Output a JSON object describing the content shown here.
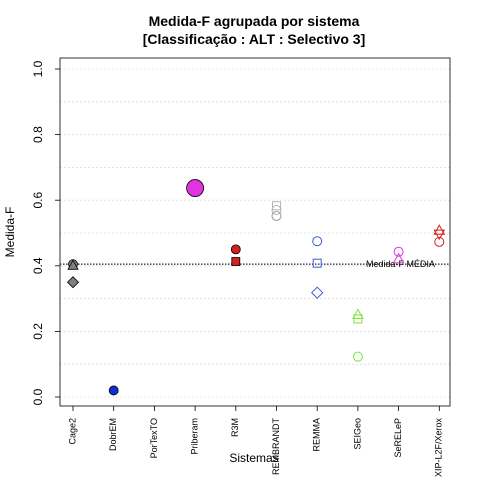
{
  "chart_data": {
    "type": "scatter",
    "title": "Medida-F agrupada por sistema",
    "subtitle": "[Classificação : ALT : Selectivo 3]",
    "xlabel": "Sistemas",
    "ylabel": "Medida-F",
    "ylim": [
      0,
      1
    ],
    "yticks": [
      "0.0",
      "0.2",
      "0.4",
      "0.6",
      "0.8",
      "1.0"
    ],
    "categories": [
      "Cage2",
      "DobrEM",
      "PorTexTO",
      "Priberam",
      "R3M",
      "REMBRANDT",
      "REMMA",
      "SEIGeo",
      "SeRELeP",
      "XIP-L2F/Xerox"
    ],
    "grid": true,
    "reference_line": {
      "label": "Medida-F MÉDIA",
      "value": 0.405
    },
    "points": [
      {
        "category": "Cage2",
        "value": 0.405,
        "marker": "circle",
        "filled": true,
        "color": "#808080"
      },
      {
        "category": "Cage2",
        "value": 0.4,
        "marker": "triangle",
        "filled": true,
        "color": "#808080"
      },
      {
        "category": "Cage2",
        "value": 0.35,
        "marker": "diamond",
        "filled": true,
        "color": "#808080"
      },
      {
        "category": "DobrEM",
        "value": 0.02,
        "marker": "circle",
        "filled": true,
        "color": "#0b2fd6"
      },
      {
        "category": "Priberam",
        "value": 0.637,
        "marker": "circle-large",
        "filled": true,
        "color": "#e233e2"
      },
      {
        "category": "R3M",
        "value": 0.45,
        "marker": "circle",
        "filled": true,
        "color": "#d42020"
      },
      {
        "category": "R3M",
        "value": 0.413,
        "marker": "square",
        "filled": true,
        "color": "#d42020"
      },
      {
        "category": "REMBRANDT",
        "value": 0.583,
        "marker": "square",
        "filled": false,
        "color": "#b4b4b4"
      },
      {
        "category": "REMBRANDT",
        "value": 0.57,
        "marker": "circle",
        "filled": false,
        "color": "#b4b4b4"
      },
      {
        "category": "REMBRANDT",
        "value": 0.552,
        "marker": "circle",
        "filled": false,
        "color": "#9a9a9a"
      },
      {
        "category": "REMMA",
        "value": 0.475,
        "marker": "circle",
        "filled": false,
        "color": "#3b5bdb"
      },
      {
        "category": "REMMA",
        "value": 0.408,
        "marker": "square",
        "filled": false,
        "color": "#3b5bdb"
      },
      {
        "category": "REMMA",
        "value": 0.318,
        "marker": "diamond",
        "filled": false,
        "color": "#3b5bdb"
      },
      {
        "category": "SEIGeo",
        "value": 0.25,
        "marker": "triangle",
        "filled": false,
        "color": "#7be33b"
      },
      {
        "category": "SEIGeo",
        "value": 0.238,
        "marker": "square",
        "filled": false,
        "color": "#7be33b"
      },
      {
        "category": "SEIGeo",
        "value": 0.123,
        "marker": "circle",
        "filled": false,
        "color": "#7be33b"
      },
      {
        "category": "SeRELeP",
        "value": 0.443,
        "marker": "circle",
        "filled": false,
        "color": "#e233e2"
      },
      {
        "category": "SeRELeP",
        "value": 0.42,
        "marker": "triangle",
        "filled": false,
        "color": "#e233e2"
      },
      {
        "category": "XIP-L2F/Xerox",
        "value": 0.507,
        "marker": "triangle",
        "filled": false,
        "color": "#d42020"
      },
      {
        "category": "XIP-L2F/Xerox",
        "value": 0.498,
        "marker": "triangle-down",
        "filled": false,
        "color": "#d42020"
      },
      {
        "category": "XIP-L2F/Xerox",
        "value": 0.473,
        "marker": "circle",
        "filled": false,
        "color": "#d42020"
      }
    ]
  }
}
